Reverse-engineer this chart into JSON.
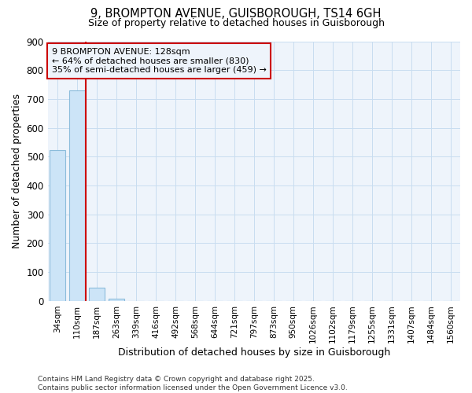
{
  "title_line1": "9, BROMPTON AVENUE, GUISBOROUGH, TS14 6GH",
  "title_line2": "Size of property relative to detached houses in Guisborough",
  "xlabel": "Distribution of detached houses by size in Guisborough",
  "ylabel": "Number of detached properties",
  "categories": [
    "34sqm",
    "110sqm",
    "187sqm",
    "263sqm",
    "339sqm",
    "416sqm",
    "492sqm",
    "568sqm",
    "644sqm",
    "721sqm",
    "797sqm",
    "873sqm",
    "950sqm",
    "1026sqm",
    "1102sqm",
    "1179sqm",
    "1255sqm",
    "1331sqm",
    "1407sqm",
    "1484sqm",
    "1560sqm"
  ],
  "values": [
    522,
    730,
    47,
    8,
    0,
    0,
    0,
    0,
    0,
    0,
    0,
    0,
    0,
    0,
    0,
    0,
    0,
    0,
    0,
    0,
    0
  ],
  "bar_color": "#cce4f7",
  "bar_edge_color": "#8bbcdb",
  "grid_color": "#c8ddf0",
  "annotation_text": "9 BROMPTON AVENUE: 128sqm\n← 64% of detached houses are smaller (830)\n35% of semi-detached houses are larger (459) →",
  "vline_x": 1.42,
  "vline_color": "#cc0000",
  "annotation_box_color": "#cc0000",
  "ylim": [
    0,
    900
  ],
  "yticks": [
    0,
    100,
    200,
    300,
    400,
    500,
    600,
    700,
    800,
    900
  ],
  "footnote_line1": "Contains HM Land Registry data © Crown copyright and database right 2025.",
  "footnote_line2": "Contains public sector information licensed under the Open Government Licence v3.0.",
  "bg_color": "#ffffff",
  "plot_bg_color": "#eef4fb"
}
